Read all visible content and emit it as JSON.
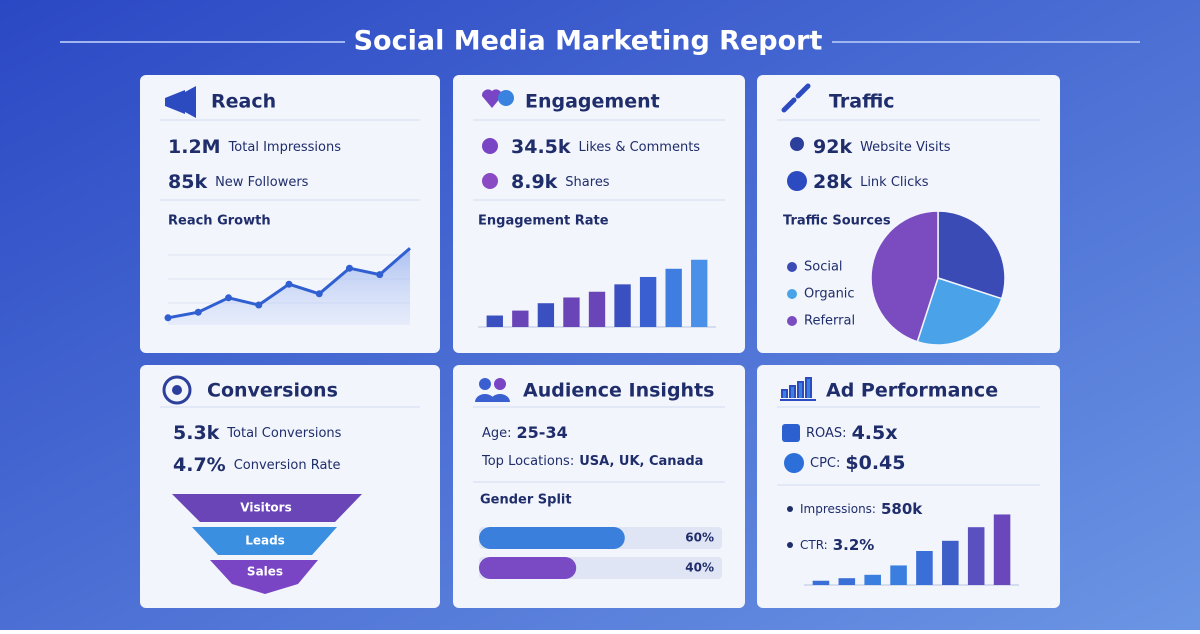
{
  "title": "Social Media Marketing Report",
  "panels": [
    {
      "title": "Reach",
      "stats": [
        {
          "value": "1.2M",
          "label": "Total Impressions"
        },
        {
          "value": "85k",
          "label": "New Followers"
        }
      ]
    },
    {
      "title": "Engagement",
      "stats": [
        {
          "value": "34.5k",
          "label": "Likes & Comments"
        },
        {
          "value": "8.9k",
          "label": "Shares"
        }
      ]
    },
    {
      "title": "Traffic",
      "stats": [
        {
          "value": "92k",
          "label": "Website Visits"
        },
        {
          "value": "28k",
          "label": "Link Clicks"
        }
      ]
    },
    {
      "title": "Conversions",
      "stats": [
        {
          "value": "5.3k",
          "label": "Total Conversions"
        },
        {
          "value": "4.7%",
          "label": "Conversion Rate"
        }
      ],
      "funnel": [
        "Visitors",
        "Leads",
        "Sales"
      ]
    },
    {
      "title": "Audience Insights",
      "stats": [
        {
          "label": "Age:",
          "value": "25-34"
        },
        {
          "label": "Top Locations:",
          "value": "USA, UK, Canada"
        }
      ]
    },
    {
      "title": "Ad Performance",
      "stats": [
        {
          "label": "ROAS:",
          "value": "4.5x"
        },
        {
          "label": "CPC:",
          "value": "$0.45"
        },
        {
          "label": "Impressions:",
          "value": "580k"
        },
        {
          "label": "CTR:",
          "value": "3.2%"
        }
      ]
    }
  ],
  "chart_data": [
    {
      "type": "line",
      "title": "Reach Growth",
      "values": [
        9,
        16,
        34,
        25,
        51,
        39,
        71,
        63,
        96
      ],
      "ylim": [
        0,
        100
      ],
      "color": "#2f5fd0"
    },
    {
      "type": "bar",
      "title": "Engagement Rate",
      "values": [
        14,
        20,
        29,
        36,
        43,
        52,
        61,
        71,
        82
      ],
      "ylim": [
        0,
        100
      ],
      "colors": [
        "#3a4fc0",
        "#6a45b8",
        "#3a4fc0",
        "#6a45b8",
        "#6a45b8",
        "#3a4fc0",
        "#3a5fd0",
        "#3f7ee0",
        "#4a8fe8"
      ]
    },
    {
      "type": "pie",
      "title": "Traffic Sources",
      "categories": [
        "Social",
        "Organic",
        "Referral"
      ],
      "values": [
        30,
        25,
        45
      ],
      "colors": [
        "#3b4bb5",
        "#4aa3e8",
        "#7b4bc0"
      ]
    },
    {
      "type": "barh",
      "title": "Gender Split",
      "categories": [
        null,
        null
      ],
      "values": [
        60,
        40
      ],
      "value_labels": [
        "60%",
        "40%"
      ],
      "xlim": [
        0,
        100
      ],
      "colors": [
        "#3a7fdc",
        "#7a4ac4"
      ]
    },
    {
      "type": "bar",
      "values": [
        5,
        8,
        12,
        23,
        40,
        52,
        68,
        83
      ],
      "ylim": [
        0,
        100
      ],
      "colors": [
        "#3a6fd8",
        "#3a6fd8",
        "#3a7fe0",
        "#3a7fe0",
        "#3a6fd8",
        "#3f5fc8",
        "#5a50c0",
        "#6a48bc"
      ]
    }
  ]
}
